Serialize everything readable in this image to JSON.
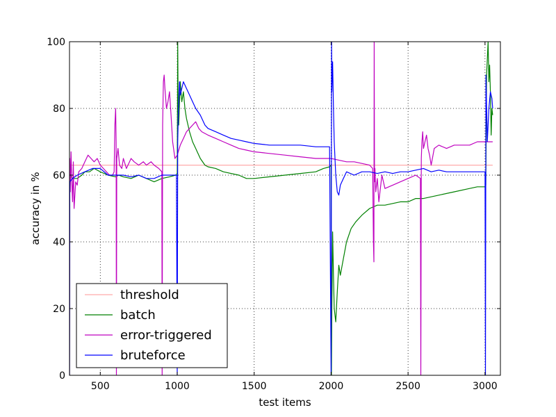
{
  "chart_data": {
    "type": "line",
    "xlabel": "test items",
    "ylabel": "accuracy in %",
    "xlim": [
      300,
      3100
    ],
    "ylim": [
      0,
      100
    ],
    "x_ticks": [
      500,
      1000,
      1500,
      2000,
      2500,
      3000
    ],
    "y_ticks": [
      0,
      20,
      40,
      60,
      80,
      100
    ],
    "grid": true,
    "legend_position": "lower-left",
    "series": [
      {
        "name": "threshold",
        "color": "#ffaaaa",
        "points": [
          [
            300,
            63
          ],
          [
            3050,
            63
          ]
        ]
      },
      {
        "name": "batch",
        "color": "#008000",
        "points": [
          [
            300,
            0
          ],
          [
            302,
            60
          ],
          [
            320,
            59
          ],
          [
            350,
            59
          ],
          [
            380,
            60
          ],
          [
            400,
            61
          ],
          [
            430,
            61
          ],
          [
            460,
            62
          ],
          [
            500,
            61
          ],
          [
            550,
            60
          ],
          [
            600,
            59.5
          ],
          [
            620,
            60
          ],
          [
            650,
            59.5
          ],
          [
            700,
            59
          ],
          [
            750,
            60
          ],
          [
            800,
            59
          ],
          [
            850,
            58
          ],
          [
            900,
            59
          ],
          [
            950,
            59.5
          ],
          [
            990,
            60
          ],
          [
            1000,
            60.5
          ],
          [
            1003,
            100
          ],
          [
            1006,
            80
          ],
          [
            1010,
            75
          ],
          [
            1020,
            88
          ],
          [
            1030,
            82
          ],
          [
            1040,
            85
          ],
          [
            1050,
            80
          ],
          [
            1060,
            77
          ],
          [
            1080,
            73
          ],
          [
            1100,
            70
          ],
          [
            1120,
            68
          ],
          [
            1150,
            65
          ],
          [
            1180,
            63
          ],
          [
            1200,
            62.5
          ],
          [
            1250,
            62
          ],
          [
            1300,
            61
          ],
          [
            1400,
            60
          ],
          [
            1450,
            59
          ],
          [
            1500,
            59
          ],
          [
            1600,
            59.5
          ],
          [
            1700,
            60
          ],
          [
            1800,
            60.5
          ],
          [
            1900,
            61
          ],
          [
            1950,
            62
          ],
          [
            1990,
            62.5
          ],
          [
            2000,
            63
          ],
          [
            2002,
            0
          ],
          [
            2005,
            20
          ],
          [
            2010,
            43
          ],
          [
            2015,
            30
          ],
          [
            2020,
            20
          ],
          [
            2030,
            16
          ],
          [
            2040,
            25
          ],
          [
            2050,
            33
          ],
          [
            2060,
            30
          ],
          [
            2080,
            35
          ],
          [
            2100,
            40
          ],
          [
            2130,
            44
          ],
          [
            2160,
            46
          ],
          [
            2200,
            48
          ],
          [
            2250,
            50
          ],
          [
            2300,
            51
          ],
          [
            2350,
            51
          ],
          [
            2400,
            51.5
          ],
          [
            2450,
            52
          ],
          [
            2500,
            52
          ],
          [
            2550,
            53
          ],
          [
            2600,
            53
          ],
          [
            2650,
            53.5
          ],
          [
            2700,
            54
          ],
          [
            2800,
            55
          ],
          [
            2900,
            56
          ],
          [
            2950,
            56.5
          ],
          [
            3000,
            56.5
          ],
          [
            3005,
            57
          ],
          [
            3010,
            90
          ],
          [
            3020,
            100
          ],
          [
            3025,
            88
          ],
          [
            3030,
            93
          ],
          [
            3035,
            85
          ],
          [
            3040,
            72
          ],
          [
            3045,
            80
          ],
          [
            3050,
            78
          ]
        ]
      },
      {
        "name": "error-triggered",
        "color": "#bf00bf",
        "points": [
          [
            300,
            0
          ],
          [
            302,
            65
          ],
          [
            305,
            55
          ],
          [
            310,
            67
          ],
          [
            315,
            58
          ],
          [
            320,
            52
          ],
          [
            325,
            64
          ],
          [
            330,
            50
          ],
          [
            340,
            58
          ],
          [
            350,
            57
          ],
          [
            360,
            61
          ],
          [
            380,
            62
          ],
          [
            400,
            64
          ],
          [
            420,
            66
          ],
          [
            440,
            65
          ],
          [
            460,
            64
          ],
          [
            480,
            65
          ],
          [
            500,
            63
          ],
          [
            520,
            62
          ],
          [
            540,
            61
          ],
          [
            560,
            60
          ],
          [
            580,
            60
          ],
          [
            590,
            61
          ],
          [
            595,
            75
          ],
          [
            600,
            80
          ],
          [
            603,
            70
          ],
          [
            605,
            0
          ],
          [
            607,
            65
          ],
          [
            615,
            68
          ],
          [
            625,
            63
          ],
          [
            640,
            62
          ],
          [
            650,
            65
          ],
          [
            670,
            62
          ],
          [
            700,
            65
          ],
          [
            720,
            64
          ],
          [
            750,
            63
          ],
          [
            780,
            64
          ],
          [
            800,
            63
          ],
          [
            830,
            64
          ],
          [
            850,
            63
          ],
          [
            880,
            62
          ],
          [
            900,
            61
          ],
          [
            902,
            0
          ],
          [
            905,
            75
          ],
          [
            910,
            88
          ],
          [
            915,
            90
          ],
          [
            920,
            86
          ],
          [
            930,
            80
          ],
          [
            940,
            82
          ],
          [
            950,
            85
          ],
          [
            960,
            78
          ],
          [
            970,
            70
          ],
          [
            985,
            65
          ],
          [
            1000,
            66
          ],
          [
            1020,
            69
          ],
          [
            1040,
            71
          ],
          [
            1060,
            73
          ],
          [
            1080,
            74
          ],
          [
            1100,
            75
          ],
          [
            1120,
            76
          ],
          [
            1140,
            74
          ],
          [
            1160,
            73
          ],
          [
            1200,
            72
          ],
          [
            1250,
            71
          ],
          [
            1300,
            70
          ],
          [
            1350,
            69
          ],
          [
            1400,
            68
          ],
          [
            1450,
            67.5
          ],
          [
            1500,
            67
          ],
          [
            1600,
            66.5
          ],
          [
            1700,
            66
          ],
          [
            1800,
            65.5
          ],
          [
            1900,
            65
          ],
          [
            2000,
            65
          ],
          [
            2050,
            64.5
          ],
          [
            2100,
            64
          ],
          [
            2150,
            64
          ],
          [
            2200,
            63.5
          ],
          [
            2250,
            63
          ],
          [
            2270,
            62
          ],
          [
            2275,
            40
          ],
          [
            2278,
            34
          ],
          [
            2280,
            100
          ],
          [
            2282,
            58
          ],
          [
            2285,
            62
          ],
          [
            2290,
            55
          ],
          [
            2300,
            59
          ],
          [
            2310,
            52
          ],
          [
            2330,
            60
          ],
          [
            2350,
            56
          ],
          [
            2400,
            57
          ],
          [
            2450,
            58
          ],
          [
            2500,
            59
          ],
          [
            2550,
            60
          ],
          [
            2580,
            59
          ],
          [
            2583,
            0
          ],
          [
            2586,
            65
          ],
          [
            2590,
            70
          ],
          [
            2595,
            73
          ],
          [
            2600,
            68
          ],
          [
            2610,
            70
          ],
          [
            2620,
            72
          ],
          [
            2630,
            68
          ],
          [
            2640,
            66
          ],
          [
            2650,
            63
          ],
          [
            2670,
            68
          ],
          [
            2700,
            69
          ],
          [
            2750,
            68
          ],
          [
            2800,
            69
          ],
          [
            2850,
            69
          ],
          [
            2900,
            69
          ],
          [
            2950,
            70
          ],
          [
            3000,
            70
          ],
          [
            3050,
            70
          ]
        ]
      },
      {
        "name": "bruteforce",
        "color": "#0000ff",
        "points": [
          [
            300,
            0
          ],
          [
            302,
            58
          ],
          [
            320,
            59
          ],
          [
            350,
            60
          ],
          [
            400,
            61
          ],
          [
            450,
            62
          ],
          [
            500,
            62
          ],
          [
            550,
            60
          ],
          [
            600,
            60
          ],
          [
            650,
            60
          ],
          [
            700,
            59.5
          ],
          [
            750,
            60
          ],
          [
            800,
            59
          ],
          [
            850,
            59
          ],
          [
            900,
            60
          ],
          [
            950,
            60
          ],
          [
            995,
            60
          ],
          [
            1000,
            0
          ],
          [
            1003,
            70
          ],
          [
            1008,
            80
          ],
          [
            1015,
            88
          ],
          [
            1020,
            84
          ],
          [
            1030,
            86
          ],
          [
            1040,
            88
          ],
          [
            1060,
            86
          ],
          [
            1080,
            84
          ],
          [
            1100,
            82
          ],
          [
            1120,
            80
          ],
          [
            1150,
            78
          ],
          [
            1180,
            75
          ],
          [
            1200,
            74
          ],
          [
            1250,
            73
          ],
          [
            1300,
            72
          ],
          [
            1350,
            71
          ],
          [
            1400,
            70.5
          ],
          [
            1450,
            70
          ],
          [
            1500,
            69.5
          ],
          [
            1600,
            69
          ],
          [
            1700,
            69
          ],
          [
            1800,
            69
          ],
          [
            1900,
            68.5
          ],
          [
            1990,
            68.5
          ],
          [
            2000,
            0
          ],
          [
            2003,
            100
          ],
          [
            2005,
            85
          ],
          [
            2010,
            94
          ],
          [
            2015,
            80
          ],
          [
            2020,
            70
          ],
          [
            2030,
            60
          ],
          [
            2040,
            55
          ],
          [
            2050,
            54
          ],
          [
            2060,
            57
          ],
          [
            2080,
            59
          ],
          [
            2100,
            61
          ],
          [
            2150,
            60
          ],
          [
            2200,
            61
          ],
          [
            2250,
            61
          ],
          [
            2300,
            60.5
          ],
          [
            2350,
            61
          ],
          [
            2400,
            60.5
          ],
          [
            2450,
            61
          ],
          [
            2500,
            61
          ],
          [
            2550,
            61.5
          ],
          [
            2600,
            62
          ],
          [
            2650,
            61
          ],
          [
            2700,
            61.5
          ],
          [
            2750,
            61
          ],
          [
            2800,
            61
          ],
          [
            2850,
            61
          ],
          [
            2900,
            61
          ],
          [
            2950,
            61
          ],
          [
            3000,
            61
          ],
          [
            3003,
            0
          ],
          [
            3006,
            90
          ],
          [
            3015,
            70
          ],
          [
            3025,
            80
          ],
          [
            3035,
            85
          ],
          [
            3045,
            83
          ],
          [
            3050,
            80
          ]
        ]
      }
    ]
  }
}
